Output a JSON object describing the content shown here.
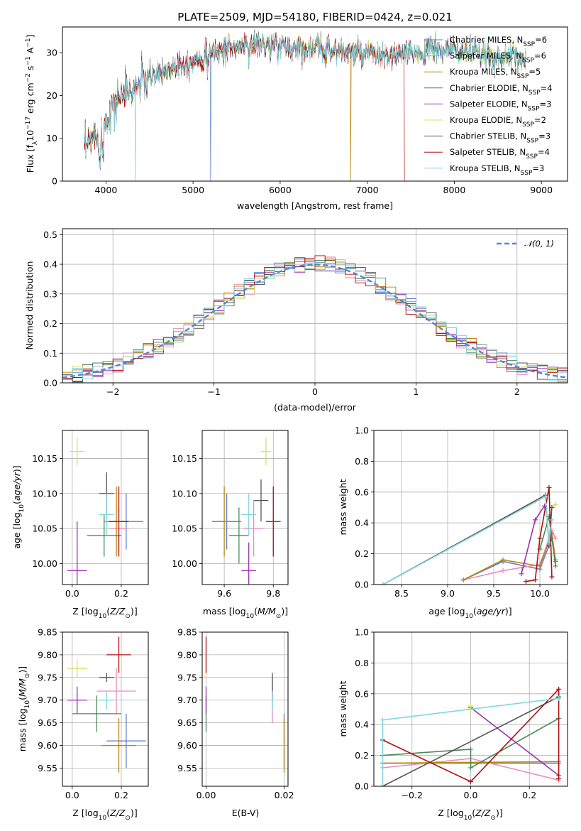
{
  "chart_data": [
    {
      "type": "line",
      "title": "PLATE=2509, MJD=54180, FIBERID=0424, z=0.021",
      "xlabel": "wavelength [Angstrom, rest frame]",
      "ylabel": "Flux [fλ10⁻¹⁷ erg cm⁻² s⁻¹ A⁻¹]",
      "xlim": [
        3500,
        9300
      ],
      "ylim": [
        0,
        36
      ],
      "xticks": [
        4000,
        5000,
        6000,
        7000,
        8000,
        9000
      ],
      "yticks": [
        0,
        10,
        20,
        30
      ],
      "grid": false,
      "legend": "upper right",
      "series": [
        {
          "name": "Chabrier MILES, N_SSP=6",
          "color": "#5b7fd6"
        },
        {
          "name": "Salpeter MILES, N_SSP=6",
          "color": "#e88dbf"
        },
        {
          "name": "Kroupa MILES, N_SSP=5",
          "color": "#b8860b"
        },
        {
          "name": "Chabrier ELODIE, N_SSP=4",
          "color": "#4a8a5a"
        },
        {
          "name": "Salpeter ELODIE, N_SSP=3",
          "color": "#9b30b0"
        },
        {
          "name": "Kroupa ELODIE, N_SSP=2",
          "color": "#d8e060"
        },
        {
          "name": "Chabrier STELIB, N_SSP=3",
          "color": "#555555"
        },
        {
          "name": "Salpeter STELIB, N_SSP=4",
          "color": "#b01010"
        },
        {
          "name": "Kroupa STELIB, N_SSP=3",
          "color": "#7fd8e0"
        }
      ],
      "spectrum_profile": {
        "x": [
          3750,
          3850,
          3950,
          4050,
          4150,
          4300,
          4400,
          4600,
          4800,
          5000,
          5200,
          5400,
          5600,
          5800,
          6000,
          6200,
          6400,
          6600,
          6800,
          7000,
          7200,
          7400,
          7600,
          7800,
          8000,
          8200,
          8400,
          8600,
          8800
        ],
        "y": [
          7,
          10,
          12,
          17,
          20,
          21,
          23,
          25,
          27,
          28,
          30,
          31,
          31.5,
          32,
          31.5,
          31,
          31,
          30.5,
          30,
          29.5,
          29,
          29.5,
          30,
          31,
          30.5,
          30,
          29,
          29,
          28.5
        ]
      },
      "dropouts": [
        {
          "x": 4340,
          "series": "Kroupa STELIB"
        },
        {
          "x": 5200,
          "series": "Chabrier MILES"
        },
        {
          "x": 6810,
          "series": "Kroupa MILES"
        },
        {
          "x": 7430,
          "series": "Salpeter STELIB"
        }
      ]
    },
    {
      "type": "line",
      "xlabel": "(data-model)/error",
      "ylabel": "Normed distribution",
      "xlim": [
        -2.5,
        2.5
      ],
      "ylim": [
        0,
        0.52
      ],
      "xticks": [
        -2,
        -1,
        0,
        1,
        2
      ],
      "yticks": [
        0.0,
        0.1,
        0.2,
        0.3,
        0.4,
        0.5
      ],
      "grid": true,
      "legend": "upper right",
      "reference": {
        "name": "𝒩(0, 1)",
        "color": "#4f86d9",
        "mean": 0,
        "std": 1
      },
      "bins": [
        -2.5,
        2.5,
        50
      ]
    },
    {
      "type": "scatter",
      "xlabel": "Z [log₁₀(Z/Z⊙)]",
      "ylabel": "age  [log₁₀(age/yr)]",
      "xlim": [
        -0.04,
        0.31
      ],
      "ylim": [
        9.97,
        10.19
      ],
      "xticks": [
        0.0,
        0.2
      ],
      "yticks": [
        10.0,
        10.05,
        10.1,
        10.15
      ],
      "grid": true,
      "points": [
        {
          "series": "Chabrier MILES",
          "x": 0.22,
          "y": 10.06,
          "xerr": 0.07,
          "yerr": 0.04
        },
        {
          "series": "Salpeter MILES",
          "x": 0.19,
          "y": 10.05,
          "xerr": 0.04,
          "yerr": 0.03
        },
        {
          "series": "Kroupa MILES",
          "x": 0.18,
          "y": 10.06,
          "xerr": 0.05,
          "yerr": 0.05
        },
        {
          "series": "Chabrier ELODIE",
          "x": 0.13,
          "y": 10.04,
          "xerr": 0.07,
          "yerr": 0.03
        },
        {
          "series": "Salpeter ELODIE",
          "x": 0.02,
          "y": 9.99,
          "xerr": 0.04,
          "yerr": 0.07
        },
        {
          "series": "Kroupa ELODIE",
          "x": 0.02,
          "y": 10.16,
          "xerr": 0.03,
          "yerr": 0.02
        },
        {
          "series": "Chabrier STELIB",
          "x": 0.14,
          "y": 10.1,
          "xerr": 0.03,
          "yerr": 0.03
        },
        {
          "series": "Salpeter STELIB",
          "x": 0.19,
          "y": 10.06,
          "xerr": 0.04,
          "yerr": 0.05
        },
        {
          "series": "Kroupa STELIB",
          "x": 0.14,
          "y": 10.07,
          "xerr": 0.03,
          "yerr": 0.03
        }
      ]
    },
    {
      "type": "scatter",
      "xlabel": "mass [log₁₀(M/M⊙)]",
      "xlim": [
        9.51,
        9.86
      ],
      "ylim": [
        9.97,
        10.19
      ],
      "xticks": [
        9.6,
        9.8
      ],
      "yticks": [
        10.0,
        10.05,
        10.1,
        10.15
      ],
      "grid": true,
      "points": [
        {
          "series": "Chabrier MILES",
          "x": 9.61,
          "y": 10.06,
          "xerr": 0.06,
          "yerr": 0.04
        },
        {
          "series": "Salpeter MILES",
          "x": 9.72,
          "y": 10.05,
          "xerr": 0.04,
          "yerr": 0.04
        },
        {
          "series": "Kroupa MILES",
          "x": 9.6,
          "y": 10.06,
          "xerr": 0.05,
          "yerr": 0.05
        },
        {
          "series": "Chabrier ELODIE",
          "x": 9.66,
          "y": 10.04,
          "xerr": 0.04,
          "yerr": 0.04
        },
        {
          "series": "Salpeter ELODIE",
          "x": 9.7,
          "y": 9.99,
          "xerr": 0.03,
          "yerr": 0.04
        },
        {
          "series": "Kroupa ELODIE",
          "x": 9.77,
          "y": 10.16,
          "xerr": 0.02,
          "yerr": 0.02
        },
        {
          "series": "Chabrier STELIB",
          "x": 9.75,
          "y": 10.09,
          "xerr": 0.03,
          "yerr": 0.03
        },
        {
          "series": "Salpeter STELIB",
          "x": 9.8,
          "y": 10.06,
          "xerr": 0.03,
          "yerr": 0.05
        },
        {
          "series": "Kroupa STELIB",
          "x": 9.7,
          "y": 10.07,
          "xerr": 0.03,
          "yerr": 0.03
        }
      ]
    },
    {
      "type": "line",
      "xlabel": "age  [log₁₀(age/yr)]",
      "ylabel": "mass weight",
      "xlim": [
        8.2,
        10.3
      ],
      "ylim": [
        0,
        1
      ],
      "xticks": [
        8.5,
        9.0,
        9.5,
        10.0
      ],
      "yticks": [
        0.0,
        0.2,
        0.4,
        0.6,
        0.8,
        1.0
      ],
      "grid": true,
      "series": [
        {
          "name": "Chabrier MILES",
          "x": [
            9.17,
            9.6,
            10.0,
            10.13,
            10.17
          ],
          "y": [
            0.03,
            0.15,
            0.1,
            0.3,
            0.15
          ]
        },
        {
          "name": "Salpeter MILES",
          "x": [
            9.17,
            9.6,
            9.8,
            10.0,
            10.13,
            10.17
          ],
          "y": [
            0.03,
            0.09,
            0.11,
            0.13,
            0.35,
            0.3
          ]
        },
        {
          "name": "Kroupa MILES",
          "x": [
            9.17,
            9.6,
            10.0,
            10.13,
            10.17
          ],
          "y": [
            0.03,
            0.16,
            0.12,
            0.33,
            0.16
          ]
        },
        {
          "name": "Chabrier ELODIE",
          "x": [
            10.0,
            10.1,
            10.17
          ],
          "y": [
            0.23,
            0.44,
            0.12
          ]
        },
        {
          "name": "Salpeter ELODIE",
          "x": [
            9.8,
            9.95,
            10.05
          ],
          "y": [
            0.07,
            0.42,
            0.51
          ]
        },
        {
          "name": "Kroupa ELODIE",
          "x": [
            10.13,
            10.17
          ],
          "y": [
            0.5,
            0.52
          ]
        },
        {
          "name": "Chabrier STELIB",
          "x": [
            8.3,
            10.06,
            10.1,
            10.13
          ],
          "y": [
            0.0,
            0.58,
            0.25,
            0.5
          ]
        },
        {
          "name": "Salpeter STELIB",
          "x": [
            9.85,
            9.95,
            10.0,
            10.1,
            10.13
          ],
          "y": [
            0.02,
            0.03,
            0.3,
            0.63,
            0.05
          ]
        },
        {
          "name": "Kroupa STELIB",
          "x": [
            8.3,
            10.06,
            10.1,
            10.13
          ],
          "y": [
            0.0,
            0.57,
            0.27,
            0.42
          ]
        }
      ]
    },
    {
      "type": "scatter",
      "xlabel": "Z [log₁₀(Z/Z⊙)]",
      "ylabel": "mass [log₁₀(M/M⊙)]",
      "xlim": [
        -0.04,
        0.31
      ],
      "ylim": [
        9.51,
        9.85
      ],
      "xticks": [
        0.0,
        0.2
      ],
      "yticks": [
        9.55,
        9.6,
        9.65,
        9.7,
        9.75,
        9.8,
        9.85
      ],
      "grid": true,
      "points": [
        {
          "series": "Chabrier MILES",
          "x": 0.22,
          "y": 9.61,
          "xerr": 0.08,
          "yerr": 0.06
        },
        {
          "series": "Salpeter MILES",
          "x": 0.18,
          "y": 9.72,
          "xerr": 0.08,
          "yerr": 0.05
        },
        {
          "series": "Kroupa MILES",
          "x": 0.19,
          "y": 9.6,
          "xerr": 0.07,
          "yerr": 0.06
        },
        {
          "series": "Chabrier ELODIE",
          "x": 0.1,
          "y": 9.67,
          "xerr": 0.1,
          "yerr": 0.04
        },
        {
          "series": "Salpeter ELODIE",
          "x": 0.02,
          "y": 9.7,
          "xerr": 0.04,
          "yerr": 0.03
        },
        {
          "series": "Kroupa ELODIE",
          "x": 0.02,
          "y": 9.77,
          "xerr": 0.04,
          "yerr": 0.02
        },
        {
          "series": "Chabrier STELIB",
          "x": 0.14,
          "y": 9.75,
          "xerr": 0.03,
          "yerr": 0.01
        },
        {
          "series": "Salpeter STELIB",
          "x": 0.19,
          "y": 9.8,
          "xerr": 0.05,
          "yerr": 0.04
        },
        {
          "series": "Kroupa STELIB",
          "x": 0.14,
          "y": 9.7,
          "xerr": 0.03,
          "yerr": 0.02
        }
      ]
    },
    {
      "type": "scatter",
      "xlabel": "E(B-V)",
      "xlim": [
        -0.001,
        0.021
      ],
      "ylim": [
        9.51,
        9.85
      ],
      "xticks": [
        0.0,
        0.02
      ],
      "yticks": [
        9.55,
        9.6,
        9.65,
        9.7,
        9.75,
        9.8,
        9.85
      ],
      "grid": true,
      "points": [
        {
          "series": "Chabrier MILES",
          "x": 0.02,
          "y": 9.61,
          "yerr": 0.06
        },
        {
          "series": "Salpeter MILES",
          "x": 0.017,
          "y": 9.7,
          "yerr": 0.05
        },
        {
          "series": "Kroupa MILES",
          "x": 0.02,
          "y": 9.6,
          "yerr": 0.06
        },
        {
          "series": "Chabrier ELODIE",
          "x": 0.0,
          "y": 9.67,
          "yerr": 0.04
        },
        {
          "series": "Salpeter ELODIE",
          "x": 0.0,
          "y": 9.7,
          "yerr": 0.03
        },
        {
          "series": "Kroupa ELODIE",
          "x": 0.0,
          "y": 9.77,
          "yerr": 0.02
        },
        {
          "series": "Chabrier STELIB",
          "x": 0.017,
          "y": 9.73,
          "yerr": 0.03
        },
        {
          "series": "Salpeter STELIB",
          "x": 0.0,
          "y": 9.8,
          "yerr": 0.04
        },
        {
          "series": "Kroupa STELIB",
          "x": 0.017,
          "y": 9.7,
          "yerr": 0.02
        }
      ]
    },
    {
      "type": "line",
      "xlabel": "Z [log₁₀(Z/Z⊙)]",
      "ylabel": "mass weight",
      "xlim": [
        -0.33,
        0.33
      ],
      "ylim": [
        0,
        1
      ],
      "xticks": [
        -0.2,
        0.0,
        0.2
      ],
      "yticks": [
        0.0,
        0.2,
        0.4,
        0.6,
        0.8,
        1.0
      ],
      "grid": true,
      "series": [
        {
          "name": "Chabrier MILES",
          "x": [
            -0.3,
            0.3
          ],
          "y": [
            0.15,
            0.15
          ]
        },
        {
          "name": "Salpeter MILES",
          "x": [
            -0.3,
            0.0,
            0.3
          ],
          "y": [
            0.12,
            0.18,
            0.04
          ]
        },
        {
          "name": "Kroupa MILES",
          "x": [
            -0.3,
            0.3
          ],
          "y": [
            0.15,
            0.16
          ]
        },
        {
          "name": "Chabrier ELODIE",
          "x": [
            -0.3,
            0.0,
            0.0,
            0.3
          ],
          "y": [
            0.2,
            0.24,
            0.12,
            0.44
          ]
        },
        {
          "name": "Salpeter ELODIE",
          "x": [
            0.0,
            0.3
          ],
          "y": [
            0.51,
            0.07
          ]
        },
        {
          "name": "Kroupa ELODIE",
          "x": [
            0.0,
            0.0
          ],
          "y": [
            0.5,
            0.52
          ]
        },
        {
          "name": "Chabrier STELIB",
          "x": [
            -0.3,
            0.3
          ],
          "y": [
            0.0,
            0.58
          ]
        },
        {
          "name": "Salpeter STELIB",
          "x": [
            -0.3,
            0.0,
            0.3,
            0.3
          ],
          "y": [
            0.3,
            0.03,
            0.63,
            0.05
          ]
        },
        {
          "name": "Kroupa STELIB",
          "x": [
            -0.3,
            -0.3,
            0.3
          ],
          "y": [
            0.0,
            0.43,
            0.57
          ]
        }
      ]
    }
  ]
}
